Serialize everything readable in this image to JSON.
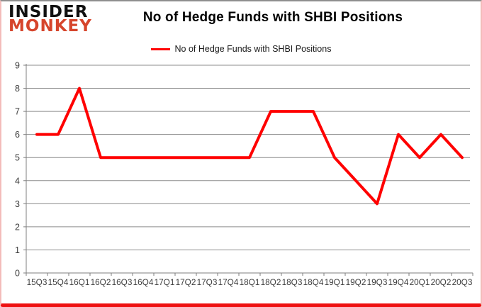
{
  "header": {
    "logo": {
      "line1": "INSIDER",
      "line2": "MONKEY",
      "line1_color": "#111111",
      "line2_color": "#d6452c"
    },
    "title": "No of Hedge Funds with SHBI Positions",
    "legend": {
      "label": "No of Hedge Funds with SHBI Positions",
      "swatch_color": "#ff0000"
    }
  },
  "chart_data": {
    "type": "line",
    "title": "No of Hedge Funds with SHBI Positions",
    "categories": [
      "15Q3",
      "15Q4",
      "16Q1",
      "16Q2",
      "16Q3",
      "16Q4",
      "17Q1",
      "17Q2",
      "17Q3",
      "17Q4",
      "18Q1",
      "18Q2",
      "18Q3",
      "18Q4",
      "19Q1",
      "19Q2",
      "19Q3",
      "19Q4",
      "20Q1",
      "20Q2",
      "20Q3"
    ],
    "series": [
      {
        "name": "No of Hedge Funds with SHBI Positions",
        "color": "#ff0000",
        "line_width": 4,
        "values": [
          6,
          6,
          8,
          5,
          5,
          5,
          5,
          5,
          5,
          5,
          5,
          7,
          7,
          7,
          5,
          4,
          3,
          6,
          5,
          6,
          5
        ]
      }
    ],
    "xlabel": "",
    "ylabel": "",
    "ylim": [
      0,
      9
    ],
    "yticks": [
      0,
      1,
      2,
      3,
      4,
      5,
      6,
      7,
      8,
      9
    ],
    "grid": "horizontal",
    "gridline_color": "#8c8c8c",
    "axis_color": "#7f7f7f",
    "tick_label_color": "#3d3d3d",
    "legend_position": "top-center"
  }
}
